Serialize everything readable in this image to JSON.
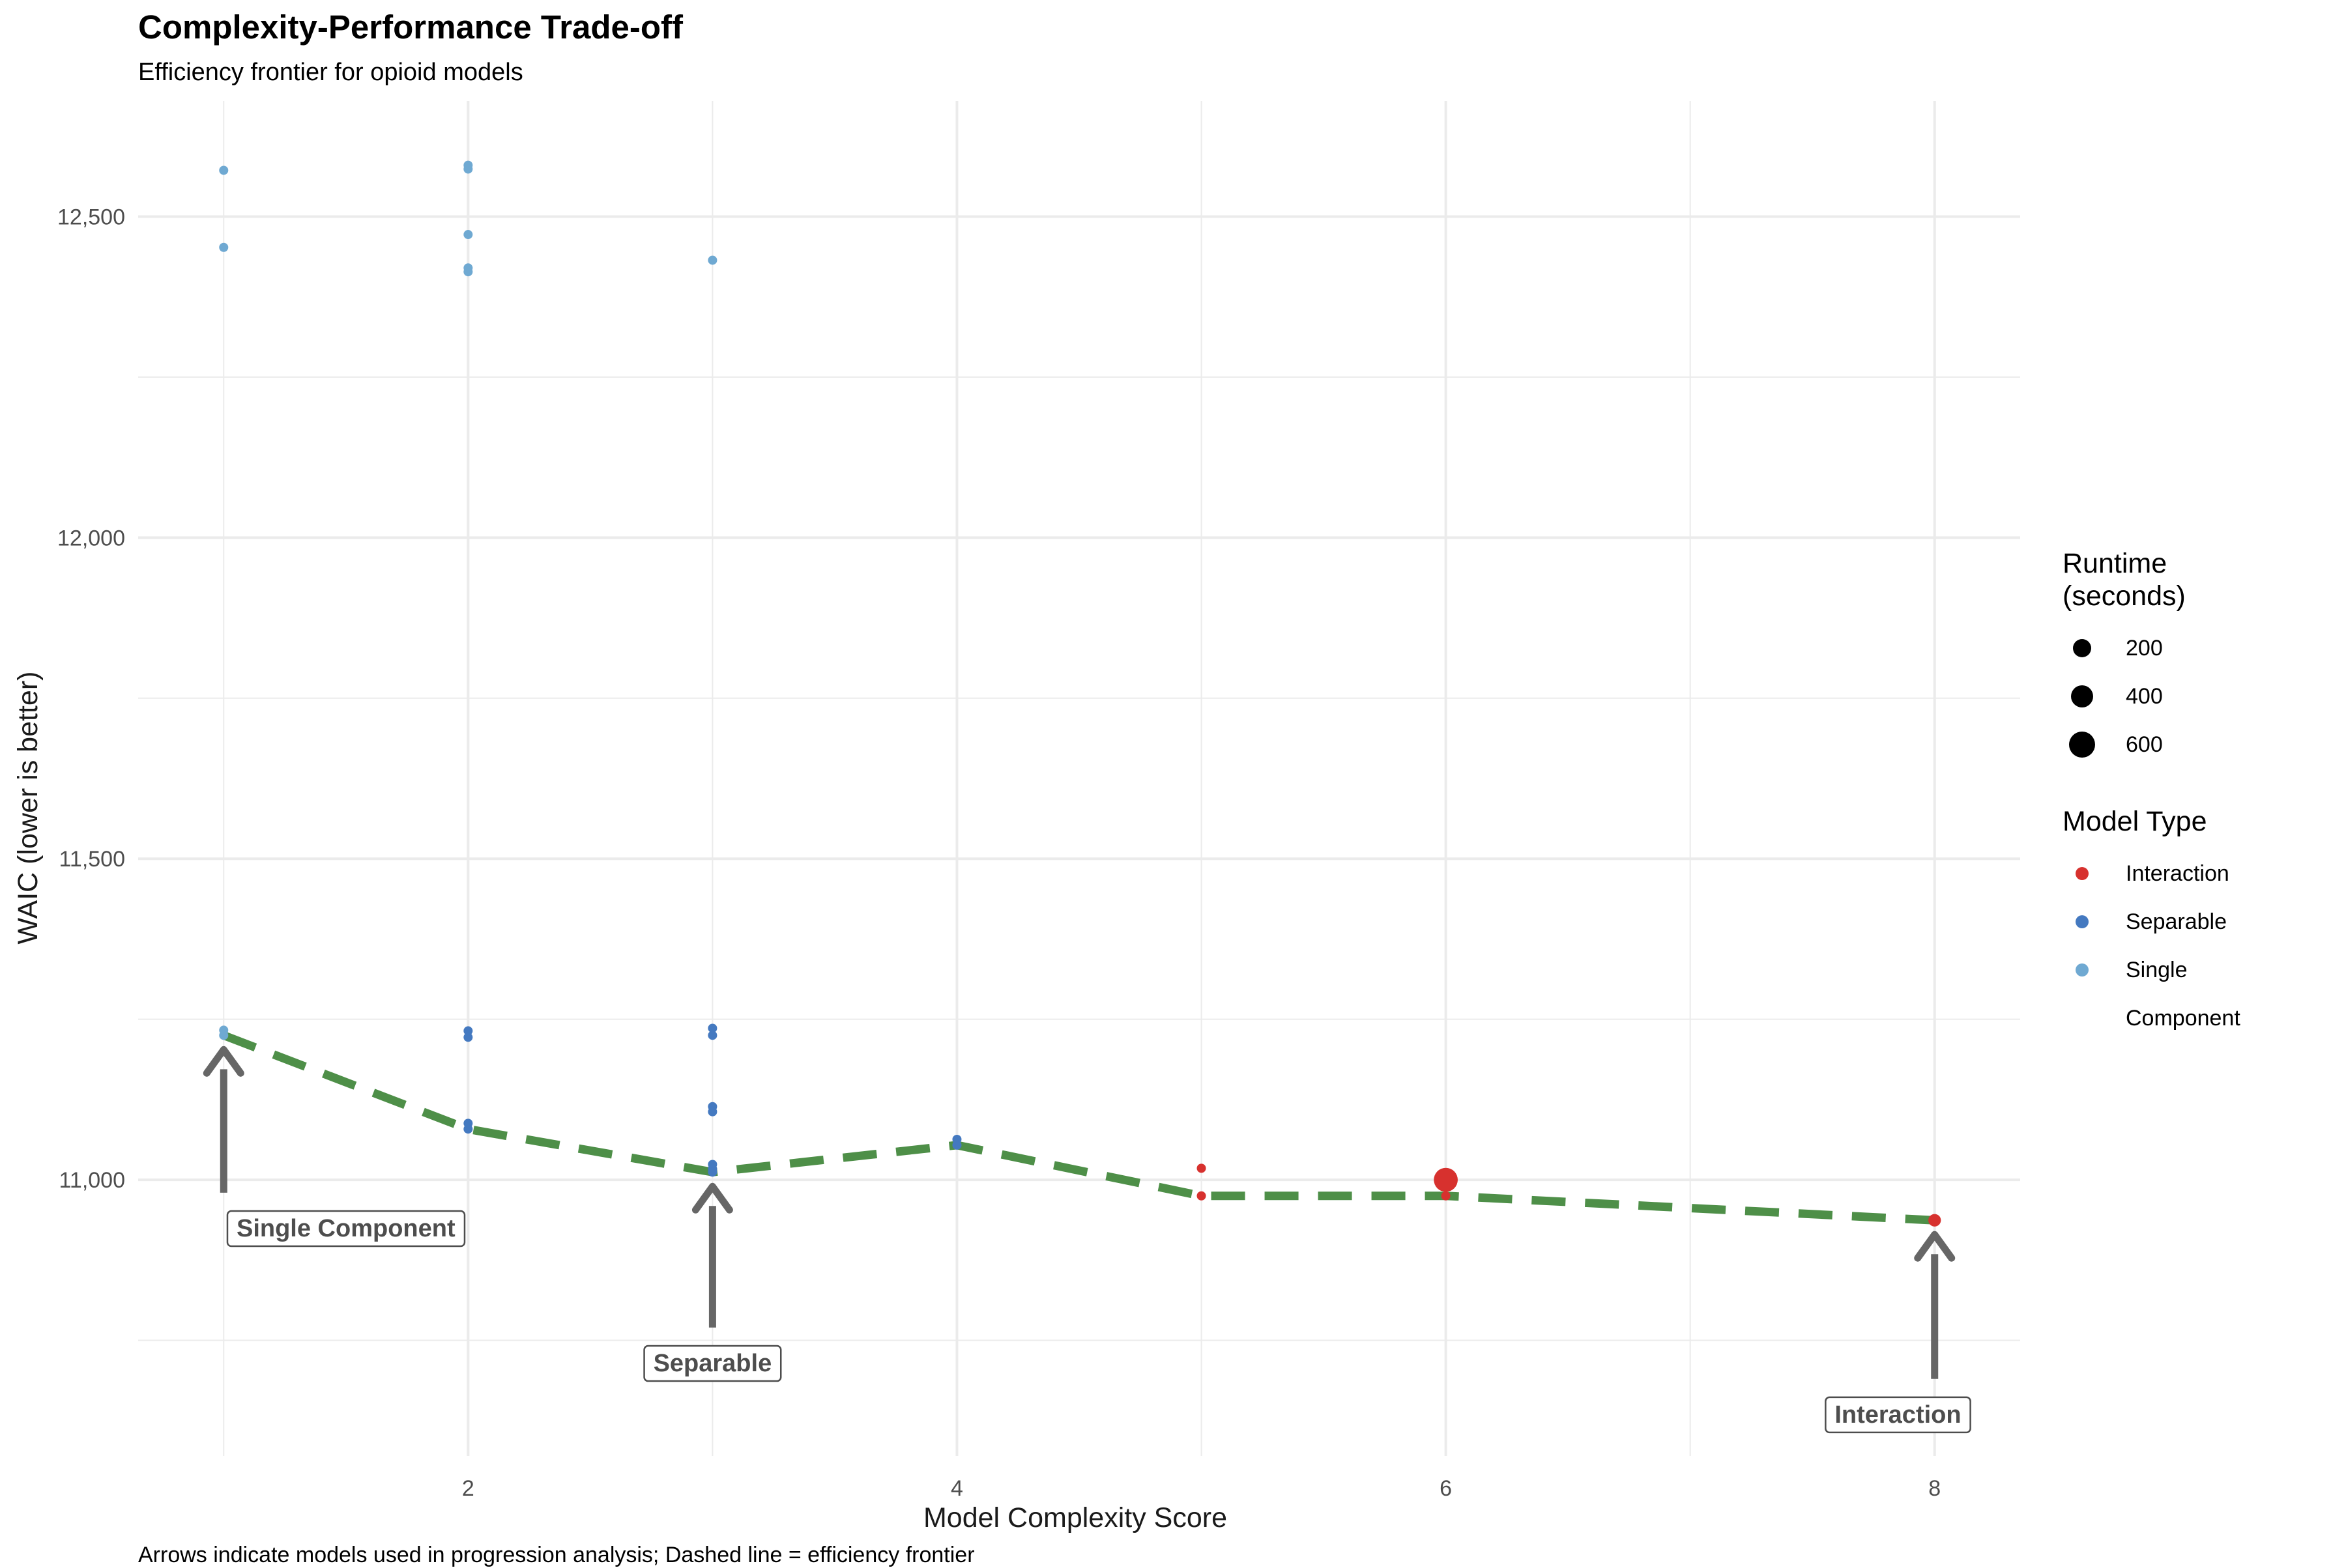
{
  "chart_data": {
    "type": "scatter",
    "title": "Complexity-Performance Trade-off",
    "subtitle": "Efficiency frontier for opioid models",
    "caption": "Arrows indicate models used in progression analysis; Dashed line = efficiency frontier",
    "xlabel": "Model Complexity Score",
    "ylabel": "WAIC (lower is better)",
    "xlim": [
      0.65,
      8.35
    ],
    "ylim": [
      10570,
      12680
    ],
    "x_ticks": [
      2,
      4,
      6,
      8
    ],
    "x_tick_labels": [
      "2",
      "4",
      "6",
      "8"
    ],
    "y_ticks": [
      11000,
      11500,
      12000,
      12500
    ],
    "y_tick_labels": [
      "11,000",
      "11,500",
      "12,000",
      "12,500"
    ],
    "grid": true,
    "series": [
      {
        "name": "Interaction",
        "color": "#D7312E",
        "points": [
          {
            "x": 5,
            "y": 11018,
            "runtime": 60
          },
          {
            "x": 5,
            "y": 10975,
            "runtime": 60
          },
          {
            "x": 6,
            "y": 11000,
            "runtime": 620
          },
          {
            "x": 6,
            "y": 10975,
            "runtime": 60
          },
          {
            "x": 8,
            "y": 10937,
            "runtime": 90
          }
        ]
      },
      {
        "name": "Separable",
        "color": "#4479C0",
        "points": [
          {
            "x": 2,
            "y": 11232,
            "runtime": 60
          },
          {
            "x": 2,
            "y": 11222,
            "runtime": 60
          },
          {
            "x": 2,
            "y": 11088,
            "runtime": 60
          },
          {
            "x": 2,
            "y": 11079,
            "runtime": 60
          },
          {
            "x": 3,
            "y": 11236,
            "runtime": 60
          },
          {
            "x": 3,
            "y": 11225,
            "runtime": 60
          },
          {
            "x": 3,
            "y": 11114,
            "runtime": 60
          },
          {
            "x": 3,
            "y": 11106,
            "runtime": 60
          },
          {
            "x": 3,
            "y": 11024,
            "runtime": 60
          },
          {
            "x": 3,
            "y": 11017,
            "runtime": 60
          },
          {
            "x": 3,
            "y": 11012,
            "runtime": 60
          },
          {
            "x": 4,
            "y": 11063,
            "runtime": 60
          },
          {
            "x": 4,
            "y": 11054,
            "runtime": 60
          }
        ]
      },
      {
        "name": "Single Component",
        "color": "#6FA9D2",
        "points": [
          {
            "x": 1,
            "y": 12572,
            "runtime": 60
          },
          {
            "x": 1,
            "y": 12452,
            "runtime": 60
          },
          {
            "x": 1,
            "y": 11233,
            "runtime": 60
          },
          {
            "x": 1,
            "y": 11225,
            "runtime": 60
          },
          {
            "x": 2,
            "y": 12580,
            "runtime": 60
          },
          {
            "x": 2,
            "y": 12574,
            "runtime": 60
          },
          {
            "x": 2,
            "y": 12472,
            "runtime": 60
          },
          {
            "x": 2,
            "y": 12420,
            "runtime": 60
          },
          {
            "x": 2,
            "y": 12414,
            "runtime": 60
          },
          {
            "x": 3,
            "y": 12432,
            "runtime": 60
          }
        ]
      }
    ],
    "frontier": {
      "color": "#4E8F48",
      "points": [
        {
          "x": 1,
          "y": 11225
        },
        {
          "x": 2,
          "y": 11079
        },
        {
          "x": 3,
          "y": 11012
        },
        {
          "x": 4,
          "y": 11054
        },
        {
          "x": 5,
          "y": 10975
        },
        {
          "x": 6,
          "y": 10975
        },
        {
          "x": 8,
          "y": 10937
        }
      ]
    },
    "annotations": [
      {
        "label": "Single Component",
        "point": {
          "x": 1,
          "y": 11225
        },
        "arrow_tail": {
          "x": 1,
          "y": 10980
        },
        "label_anchor": {
          "x": 1.5,
          "y": 10925
        }
      },
      {
        "label": "Separable",
        "point": {
          "x": 3,
          "y": 11012
        },
        "arrow_tail": {
          "x": 3,
          "y": 10770
        },
        "label_anchor": {
          "x": 3,
          "y": 10715
        }
      },
      {
        "label": "Interaction",
        "point": {
          "x": 8,
          "y": 10937
        },
        "arrow_tail": {
          "x": 8,
          "y": 10690
        },
        "label_anchor": {
          "x": 7.85,
          "y": 10635
        }
      }
    ],
    "legend_runtime": {
      "title_line1": "Runtime",
      "title_line2": "(seconds)",
      "entries": [
        {
          "label": "200",
          "value": 200
        },
        {
          "label": "400",
          "value": 400
        },
        {
          "label": "600",
          "value": 600
        }
      ]
    },
    "legend_type": {
      "title": "Model Type",
      "entries": [
        {
          "label": "Interaction",
          "color": "#D7312E"
        },
        {
          "label": "Separable",
          "color": "#4479C0"
        },
        {
          "label": "Single Component",
          "color": "#6FA9D2"
        }
      ]
    },
    "legend_position": "right"
  }
}
